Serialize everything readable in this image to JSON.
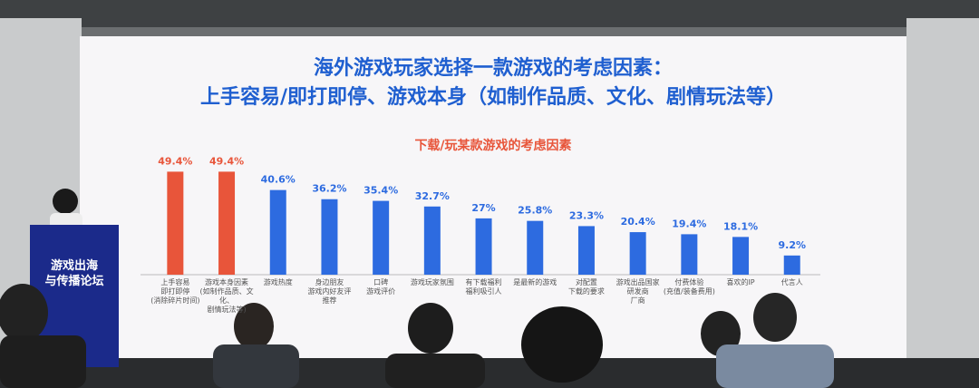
{
  "chart_data": {
    "type": "bar",
    "title_lines": [
      "海外游戏玩家选择一款游戏的考虑因素：",
      "上手容易/即打即停、游戏本身（如制作品质、文化、剧情玩法等）"
    ],
    "subtitle": "下载/玩某款游戏的考虑因素",
    "categories": [
      "上手容易\n即打即停\n(消除碎片时间)",
      "游戏本身因素\n(如制作品质、文化、\n剧情玩法等)",
      "游戏热度",
      "身边朋友\n游戏内好友评\n推荐",
      "口碑\n游戏评价",
      "游戏玩家氛围",
      "有下载福利\n福利吸引人",
      "是最新的游戏",
      "对配置\n下载的要求",
      "游戏出品国家\n研发商\n厂商",
      "付费体验\n(充值/装备费用)",
      "喜欢的IP",
      "代言人"
    ],
    "values": [
      49.4,
      49.4,
      40.6,
      36.2,
      35.4,
      32.7,
      27,
      25.8,
      23.3,
      20.4,
      19.4,
      18.1,
      9.2
    ],
    "value_labels": [
      "49.4%",
      "49.4%",
      "40.6%",
      "36.2%",
      "35.4%",
      "32.7%",
      "27%",
      "25.8%",
      "23.3%",
      "20.4%",
      "19.4%",
      "18.1%",
      "9.2%"
    ],
    "colors": [
      "#e8553a",
      "#e8553a",
      "#2d6be0",
      "#2d6be0",
      "#2d6be0",
      "#2d6be0",
      "#2d6be0",
      "#2d6be0",
      "#2d6be0",
      "#2d6be0",
      "#2d6be0",
      "#2d6be0",
      "#2d6be0"
    ]
  },
  "banner": "游戏出海\n与传播论坛"
}
